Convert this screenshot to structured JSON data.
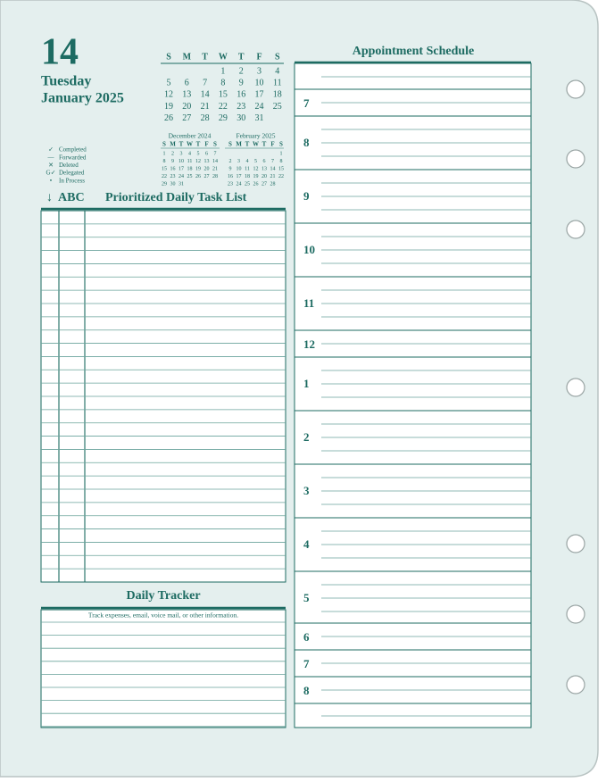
{
  "date": {
    "day": "14",
    "weekday": "Tuesday",
    "month_year": "January 2025"
  },
  "month_calendar": {
    "weekdays": [
      "S",
      "M",
      "T",
      "W",
      "T",
      "F",
      "S"
    ],
    "weeks": [
      [
        null,
        null,
        null,
        "1",
        "2",
        "3",
        "4"
      ],
      [
        "5",
        "6",
        "7",
        "8",
        "9",
        "10",
        "11"
      ],
      [
        "12",
        "13",
        "14",
        "15",
        "16",
        "17",
        "18"
      ],
      [
        "19",
        "20",
        "21",
        "22",
        "23",
        "24",
        "25"
      ],
      [
        "26",
        "27",
        "28",
        "29",
        "30",
        "31",
        null
      ]
    ]
  },
  "legend": [
    {
      "symbol": "✓",
      "label": "Completed"
    },
    {
      "symbol": "—",
      "label": "Forwarded"
    },
    {
      "symbol": "✕",
      "label": "Deleted"
    },
    {
      "symbol": "G✓",
      "label": "Delegated"
    },
    {
      "symbol": "•",
      "label": "In Process"
    }
  ],
  "small_calendars": [
    {
      "title": "December 2024",
      "weekdays": [
        "S",
        "M",
        "T",
        "W",
        "T",
        "F",
        "S"
      ],
      "weeks": [
        [
          "1",
          "2",
          "3",
          "4",
          "5",
          "6",
          "7"
        ],
        [
          "8",
          "9",
          "10",
          "11",
          "12",
          "13",
          "14"
        ],
        [
          "15",
          "16",
          "17",
          "18",
          "19",
          "20",
          "21"
        ],
        [
          "22",
          "23",
          "24",
          "25",
          "26",
          "27",
          "28"
        ],
        [
          "29",
          "30",
          "31",
          null,
          null,
          null,
          null
        ]
      ]
    },
    {
      "title": "February 2025",
      "weekdays": [
        "S",
        "M",
        "T",
        "W",
        "T",
        "F",
        "S"
      ],
      "weeks": [
        [
          null,
          null,
          null,
          null,
          null,
          null,
          "1"
        ],
        [
          "2",
          "3",
          "4",
          "5",
          "6",
          "7",
          "8"
        ],
        [
          "9",
          "10",
          "11",
          "12",
          "13",
          "14",
          "15"
        ],
        [
          "16",
          "17",
          "18",
          "19",
          "20",
          "21",
          "22"
        ],
        [
          "23",
          "24",
          "25",
          "26",
          "27",
          "28",
          null
        ]
      ]
    }
  ],
  "task_list": {
    "arrow": "↓",
    "priority": "ABC",
    "title": "Prioritized Daily Task List"
  },
  "tracker": {
    "title": "Daily Tracker",
    "subtitle": "Track expenses, email, voice mail, or other information."
  },
  "schedule": {
    "title": "Appointment Schedule",
    "hours": [
      "7",
      "8",
      "9",
      "10",
      "11",
      "12",
      "1",
      "2",
      "3",
      "4",
      "5",
      "6",
      "7",
      "8"
    ]
  }
}
